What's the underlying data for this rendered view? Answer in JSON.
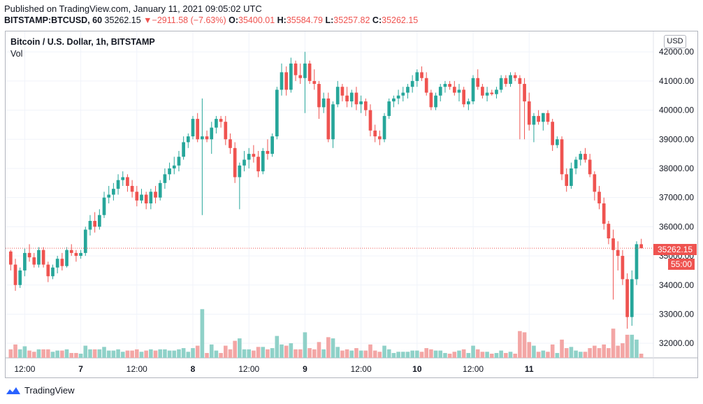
{
  "header": {
    "published": "Published on TradingView.com, January 11, 2021 09:05:02 UTC",
    "symbol": "BITSTAMP:BTCUSD, 60",
    "last": "35262.15",
    "change_arrow": "▼",
    "change": "−2911.58 (−7.63%)",
    "o_label": "O:",
    "o_value": "35400.01",
    "h_label": "H:",
    "h_value": "35584.79",
    "l_label": "L:",
    "l_value": "35257.82",
    "c_label": "C:",
    "c_value": "35262.15"
  },
  "legend": {
    "title": "Bitcoin / U.S. Dollar, 1h, BITSTAMP",
    "volume": "Vol"
  },
  "currency_badge": "USD",
  "price_tag": "35262.15",
  "countdown_tag": "55:00",
  "footer": {
    "brand": "TradingView"
  },
  "colors": {
    "up": "#26a69a",
    "down": "#ef5350",
    "up_vol": "#8fd1c8",
    "down_vol": "#f3a6a5",
    "grid": "#f0f3fa",
    "text": "#131722"
  },
  "chart_data": {
    "type": "candlestick",
    "title": "Bitcoin / U.S. Dollar, 1h, BITSTAMP",
    "ylim": [
      31500,
      42700
    ],
    "y_ticks": [
      32000,
      33000,
      34000,
      35000,
      36000,
      37000,
      38000,
      39000,
      40000,
      41000,
      42000
    ],
    "y_tick_labels": [
      "32000.00",
      "33000.00",
      "34000.00",
      "35000.00",
      "36000.00",
      "37000.00",
      "38000.00",
      "39000.00",
      "40000.00",
      "41000.00",
      "42000.00"
    ],
    "x_ticks": [
      {
        "label": "12:00",
        "index": 3
      },
      {
        "label": "7",
        "index": 15
      },
      {
        "label": "12:00",
        "index": 27
      },
      {
        "label": "8",
        "index": 39
      },
      {
        "label": "12:00",
        "index": 51
      },
      {
        "label": "9",
        "index": 63
      },
      {
        "label": "12:00",
        "index": 75
      },
      {
        "label": "10",
        "index": 87
      },
      {
        "label": "12:00",
        "index": 99
      },
      {
        "label": "11",
        "index": 111
      }
    ],
    "last_price": 35262.15,
    "candles": [
      [
        35150,
        35200,
        34500,
        34700
      ],
      [
        34700,
        34900,
        33800,
        34000
      ],
      [
        34000,
        34600,
        33900,
        34500
      ],
      [
        34500,
        35250,
        34300,
        35100
      ],
      [
        35100,
        35400,
        34800,
        34950
      ],
      [
        34950,
        35100,
        34600,
        34700
      ],
      [
        34700,
        35300,
        34600,
        35200
      ],
      [
        35200,
        35300,
        34600,
        34700
      ],
      [
        34700,
        34800,
        34100,
        34300
      ],
      [
        34300,
        34700,
        34200,
        34600
      ],
      [
        34600,
        35000,
        34400,
        34900
      ],
      [
        34900,
        35100,
        34500,
        34650
      ],
      [
        34650,
        35300,
        34600,
        35200
      ],
      [
        35200,
        35400,
        35000,
        35100
      ],
      [
        35100,
        35200,
        34800,
        35000
      ],
      [
        35000,
        35200,
        34900,
        35100
      ],
      [
        35100,
        36000,
        35000,
        35900
      ],
      [
        35900,
        36400,
        35700,
        36200
      ],
      [
        36200,
        36500,
        35800,
        36000
      ],
      [
        36000,
        36600,
        35900,
        36400
      ],
      [
        36400,
        37200,
        36300,
        37000
      ],
      [
        37000,
        37400,
        36800,
        37100
      ],
      [
        37100,
        37500,
        36900,
        37300
      ],
      [
        37300,
        37800,
        37100,
        37600
      ],
      [
        37600,
        37900,
        37400,
        37700
      ],
      [
        37700,
        37800,
        37200,
        37400
      ],
      [
        37400,
        37600,
        37000,
        37200
      ],
      [
        37200,
        37400,
        36700,
        36900
      ],
      [
        36900,
        37300,
        36800,
        37100
      ],
      [
        37100,
        37200,
        36600,
        36800
      ],
      [
        36800,
        37300,
        36600,
        37200
      ],
      [
        37200,
        37400,
        36800,
        37000
      ],
      [
        37000,
        37600,
        36900,
        37500
      ],
      [
        37500,
        38000,
        37300,
        37800
      ],
      [
        37800,
        38200,
        37600,
        38000
      ],
      [
        38000,
        38400,
        37800,
        38100
      ],
      [
        38100,
        38600,
        37900,
        38400
      ],
      [
        38400,
        39100,
        38300,
        38900
      ],
      [
        38900,
        39200,
        38700,
        39100
      ],
      [
        39100,
        39800,
        39000,
        39700
      ],
      [
        39700,
        39900,
        38900,
        39000
      ],
      [
        39000,
        40400,
        36400,
        39100
      ],
      [
        39100,
        39300,
        38900,
        39000
      ],
      [
        39000,
        39600,
        38500,
        39400
      ],
      [
        39400,
        39800,
        39200,
        39700
      ],
      [
        39700,
        39800,
        39400,
        39600
      ],
      [
        39600,
        39800,
        38800,
        39000
      ],
      [
        39000,
        39200,
        38500,
        38700
      ],
      [
        38700,
        38900,
        37500,
        37700
      ],
      [
        37700,
        38200,
        36600,
        38100
      ],
      [
        38100,
        38600,
        37900,
        38300
      ],
      [
        38300,
        38700,
        38000,
        38500
      ],
      [
        38500,
        38800,
        38200,
        38400
      ],
      [
        38400,
        38600,
        37700,
        37900
      ],
      [
        37900,
        38700,
        37800,
        38600
      ],
      [
        38600,
        39000,
        38300,
        38500
      ],
      [
        38500,
        39200,
        38400,
        39100
      ],
      [
        39100,
        40800,
        39000,
        40700
      ],
      [
        40700,
        41600,
        40500,
        41300
      ],
      [
        41300,
        41500,
        40500,
        40700
      ],
      [
        40700,
        41800,
        40600,
        41600
      ],
      [
        41600,
        41700,
        41000,
        41200
      ],
      [
        41200,
        41600,
        40900,
        41100
      ],
      [
        41100,
        42000,
        39900,
        41600
      ],
      [
        41600,
        41700,
        40900,
        41000
      ],
      [
        41000,
        41400,
        40700,
        40900
      ],
      [
        40900,
        41000,
        39700,
        40100
      ],
      [
        40100,
        40600,
        39900,
        40400
      ],
      [
        40400,
        40600,
        38900,
        39000
      ],
      [
        39000,
        40300,
        38700,
        40200
      ],
      [
        40200,
        41000,
        40100,
        40800
      ],
      [
        40800,
        40900,
        40300,
        40500
      ],
      [
        40500,
        40800,
        40100,
        40300
      ],
      [
        40300,
        40700,
        40100,
        40600
      ],
      [
        40600,
        40800,
        40000,
        40200
      ],
      [
        40200,
        40500,
        39900,
        40300
      ],
      [
        40300,
        40400,
        39800,
        40000
      ],
      [
        40000,
        40200,
        39100,
        39300
      ],
      [
        39300,
        39500,
        38900,
        39100
      ],
      [
        39100,
        39300,
        38800,
        39000
      ],
      [
        39000,
        39900,
        38900,
        39800
      ],
      [
        39800,
        40400,
        39700,
        40300
      ],
      [
        40300,
        40500,
        40100,
        40400
      ],
      [
        40400,
        40700,
        40200,
        40500
      ],
      [
        40500,
        40800,
        40300,
        40600
      ],
      [
        40600,
        40900,
        40400,
        40800
      ],
      [
        40800,
        41200,
        40600,
        41000
      ],
      [
        41000,
        41400,
        40800,
        41300
      ],
      [
        41300,
        41500,
        41000,
        41100
      ],
      [
        41100,
        41300,
        40500,
        40600
      ],
      [
        40600,
        40700,
        40000,
        40100
      ],
      [
        40100,
        40600,
        40000,
        40500
      ],
      [
        40500,
        40900,
        40300,
        40800
      ],
      [
        40800,
        41000,
        40600,
        40900
      ],
      [
        40900,
        41000,
        40700,
        40800
      ],
      [
        40800,
        41000,
        40500,
        40600
      ],
      [
        40600,
        40900,
        40300,
        40700
      ],
      [
        40700,
        40800,
        40100,
        40200
      ],
      [
        40200,
        40400,
        40000,
        40300
      ],
      [
        40300,
        41200,
        40200,
        41100
      ],
      [
        41100,
        41400,
        40700,
        40800
      ],
      [
        40800,
        40900,
        40400,
        40500
      ],
      [
        40500,
        40800,
        40300,
        40600
      ],
      [
        40600,
        40700,
        40500,
        40550
      ],
      [
        40550,
        40800,
        40400,
        40700
      ],
      [
        40700,
        41200,
        40600,
        41100
      ],
      [
        41100,
        41200,
        40800,
        40900
      ],
      [
        40900,
        41300,
        40800,
        41200
      ],
      [
        41200,
        41300,
        41000,
        41100
      ],
      [
        41100,
        41200,
        39000,
        40900
      ],
      [
        40900,
        41100,
        39000,
        40300
      ],
      [
        40300,
        40600,
        39300,
        39500
      ],
      [
        39500,
        39900,
        38900,
        39800
      ],
      [
        39800,
        40000,
        39500,
        39600
      ],
      [
        39600,
        39900,
        39300,
        39900
      ],
      [
        39900,
        40000,
        39500,
        39600
      ]
    ],
    "volumes": [
      1,
      1,
      1,
      1,
      1,
      1,
      1,
      1,
      1,
      1,
      1,
      1,
      1,
      1,
      1,
      1,
      1,
      1,
      1,
      1,
      1,
      1,
      1,
      1,
      1,
      1,
      1,
      1,
      1,
      1,
      1,
      1,
      1,
      1,
      1,
      1,
      1,
      1,
      1,
      1,
      1,
      1,
      1,
      1,
      1,
      1,
      1,
      1,
      1,
      1,
      1,
      1,
      1,
      1,
      1,
      1,
      1,
      1,
      1,
      1,
      1,
      1,
      1,
      1,
      1,
      1,
      1,
      1,
      1,
      1,
      1,
      1,
      1,
      1,
      1,
      1,
      1,
      1,
      1,
      1,
      1,
      1,
      1,
      1,
      1,
      1,
      1,
      1,
      1,
      1,
      1,
      1,
      1,
      1,
      1,
      1,
      1,
      1,
      1,
      1,
      1,
      1,
      1,
      1,
      1,
      1,
      1,
      1,
      1,
      1,
      1,
      1,
      1,
      1,
      1,
      1
    ],
    "tail_candles": [
      [
        39600,
        39700,
        38600,
        38800
      ],
      [
        38800,
        39100,
        38700,
        39000
      ],
      [
        39000,
        39100,
        37600,
        37800
      ],
      [
        37800,
        38000,
        37200,
        37400
      ],
      [
        37400,
        38200,
        37300,
        38000
      ],
      [
        38000,
        38400,
        37800,
        38300
      ],
      [
        38300,
        38600,
        38100,
        38500
      ],
      [
        38500,
        38700,
        38200,
        38300
      ],
      [
        38300,
        38500,
        37700,
        37800
      ],
      [
        37800,
        37900,
        36900,
        37200
      ],
      [
        37200,
        37400,
        36600,
        36800
      ],
      [
        36800,
        37000,
        35900,
        36100
      ],
      [
        36100,
        36200,
        35400,
        35600
      ],
      [
        35600,
        35900,
        33500,
        35200
      ],
      [
        35200,
        35500,
        34500,
        35000
      ],
      [
        35000,
        35200,
        34000,
        34200
      ],
      [
        34200,
        34400,
        32500,
        32900
      ],
      [
        32900,
        34500,
        32600,
        34200
      ],
      [
        34200,
        35500,
        34000,
        35400
      ],
      [
        35400,
        35584.79,
        35257.82,
        35262.15
      ]
    ]
  }
}
